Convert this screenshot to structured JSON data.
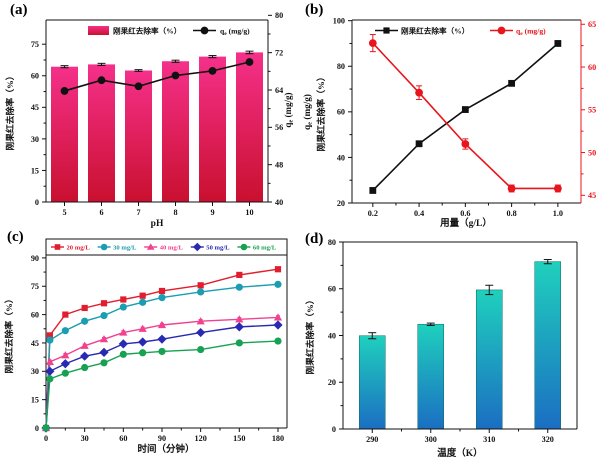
{
  "figure": {
    "background": "#ffffff",
    "panels": [
      {
        "id": "a",
        "label": "(a)"
      },
      {
        "id": "b",
        "label": "(b)"
      },
      {
        "id": "c",
        "label": "(c)"
      },
      {
        "id": "d",
        "label": "(d)"
      }
    ]
  },
  "chart_data": [
    {
      "panel": "a",
      "type": "bar",
      "overlay": "line",
      "xlabel": "pH",
      "categories": [
        5,
        6,
        7,
        8,
        9,
        10
      ],
      "left_axis": {
        "label": "刚果红去除率（%）",
        "ticks": [
          0,
          15,
          30,
          45,
          60,
          75
        ],
        "range": [
          0,
          86.5
        ]
      },
      "right_axis": {
        "label": "qe (mg/g)",
        "ticks": [
          40,
          48,
          56,
          64,
          72,
          80
        ],
        "range": [
          40,
          79
        ]
      },
      "bars": {
        "name": "刚果红去除率（%）",
        "values": [
          64.3,
          65.4,
          62.5,
          66.9,
          69.1,
          71.1
        ],
        "errors": [
          0.5,
          0.5,
          0.4,
          0.5,
          0.5,
          0.6
        ],
        "color_top": "#f5308a",
        "color_bottom": "#c9102f"
      },
      "line": {
        "name": "qe (mg/g)",
        "values": [
          63.8,
          66.1,
          64.8,
          67.1,
          68.1,
          70.0
        ],
        "errors": [
          0.4,
          0.4,
          0.4,
          0.4,
          0.4,
          0.4
        ],
        "color": "#111111"
      }
    },
    {
      "panel": "b",
      "type": "line",
      "xlabel": "用量（g/L）",
      "x": [
        0.2,
        0.4,
        0.6,
        0.8,
        1.0
      ],
      "xlim": [
        0.11,
        1.1
      ],
      "left_axis": {
        "label": "刚果红去除率（%）",
        "outer_label": "qe (mg/g)",
        "ticks": [
          20,
          40,
          60,
          80,
          100
        ],
        "range": [
          20,
          100.3
        ]
      },
      "right_axis": {
        "label": "qe (mg/g)",
        "ticks": [
          45,
          50,
          55,
          60,
          65
        ],
        "range": [
          44.1,
          65.5
        ],
        "color": "#e8151d"
      },
      "series": [
        {
          "name": "刚果红去除率（%）",
          "axis": "left",
          "color": "#111111",
          "marker": "square",
          "values": [
            25.5,
            46,
            61,
            72.5,
            90
          ]
        },
        {
          "name": "qe (mg/g)",
          "axis": "right",
          "color": "#e8151d",
          "marker": "circle",
          "values": [
            62.8,
            57.0,
            51.0,
            45.8,
            45.8
          ],
          "errors": [
            1.0,
            0.8,
            0.6,
            0.4,
            0.4
          ]
        }
      ]
    },
    {
      "panel": "c",
      "type": "line",
      "xlabel": "时间（分钟）",
      "ylabel": "刚果红去除率（%）",
      "x": [
        0,
        3,
        15,
        30,
        45,
        60,
        75,
        90,
        120,
        150,
        180
      ],
      "xticks": [
        0,
        30,
        60,
        90,
        120,
        150,
        180
      ],
      "xlim": [
        0,
        187
      ],
      "yticks": [
        0,
        15,
        30,
        45,
        60,
        75,
        90
      ],
      "ylim": [
        0,
        100
      ],
      "point_error": 0.9,
      "series": [
        {
          "name": "20 mg/L",
          "color": "#e11d2e",
          "marker": "square",
          "values": [
            0,
            49,
            60,
            63.5,
            66,
            68,
            70,
            72.5,
            75.5,
            81,
            84
          ]
        },
        {
          "name": "30 mg/L",
          "color": "#1b9db2",
          "marker": "circle",
          "values": [
            0,
            46.5,
            51.5,
            56.5,
            59.5,
            64,
            66.5,
            69,
            72,
            74.5,
            76
          ]
        },
        {
          "name": "40 mg/L",
          "color": "#f2418f",
          "marker": "triangle",
          "values": [
            0,
            35,
            38.5,
            43.5,
            47,
            50.5,
            52.5,
            54.5,
            56.5,
            57.5,
            58.5
          ]
        },
        {
          "name": "50 mg/L",
          "color": "#2929b2",
          "marker": "diamond",
          "values": [
            0,
            30,
            34,
            38,
            40,
            44.5,
            45.5,
            47,
            50.5,
            53.5,
            54.5
          ]
        },
        {
          "name": "60 mg/L",
          "color": "#17a253",
          "marker": "circle",
          "values": [
            0,
            26,
            29,
            32,
            34.5,
            39,
            39.8,
            40.5,
            41.5,
            45,
            46
          ]
        }
      ]
    },
    {
      "panel": "d",
      "type": "bar",
      "xlabel": "温度（K）",
      "ylabel": "刚果红去除率（%）",
      "categories": [
        290,
        300,
        310,
        320
      ],
      "values": [
        39.9,
        44.8,
        59.5,
        71.6
      ],
      "errors": [
        1.3,
        0.5,
        2.0,
        0.9
      ],
      "yticks": [
        0,
        20,
        40,
        60,
        80
      ],
      "ylim": [
        0,
        80
      ],
      "color_top": "#1fd0bd",
      "color_bottom": "#1b6ec2"
    }
  ]
}
